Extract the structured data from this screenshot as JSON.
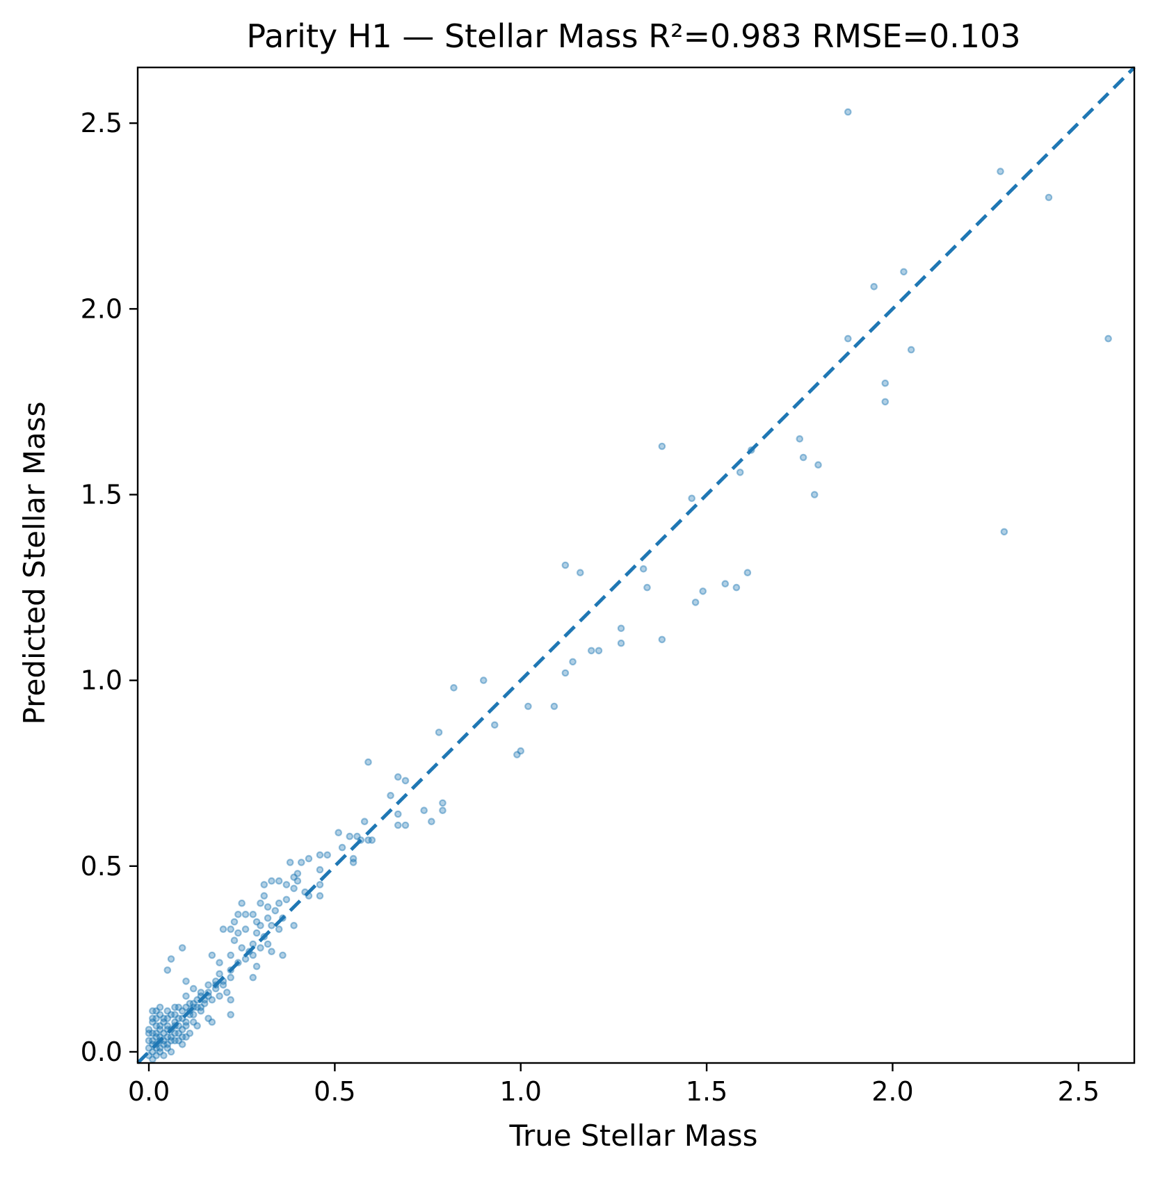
{
  "chart_data": {
    "type": "scatter",
    "title": "Parity H1 — Stellar Mass   R²=0.983   RMSE=0.103",
    "xlabel": "True Stellar Mass",
    "ylabel": "Predicted Stellar Mass",
    "xlim": [
      -0.03,
      2.65
    ],
    "ylim": [
      -0.03,
      2.65
    ],
    "xticks": [
      0.0,
      0.5,
      1.0,
      1.5,
      2.0,
      2.5
    ],
    "yticks": [
      0.0,
      0.5,
      1.0,
      1.5,
      2.0,
      2.5
    ],
    "xtick_labels": [
      "0.0",
      "0.5",
      "1.0",
      "1.5",
      "2.0",
      "2.5"
    ],
    "ytick_labels": [
      "0.0",
      "0.5",
      "1.0",
      "1.5",
      "2.0",
      "2.5"
    ],
    "grid": false,
    "colors": {
      "points": "#1f77b4",
      "identity_line": "#1f77b4"
    },
    "identity_line": {
      "style": "dashed",
      "from": [
        -0.03,
        -0.03
      ],
      "to": [
        2.65,
        2.65
      ]
    },
    "series": [
      {
        "points": [
          [
            1.88,
            2.53
          ],
          [
            2.29,
            2.37
          ],
          [
            2.42,
            2.3
          ],
          [
            2.03,
            2.1
          ],
          [
            1.95,
            2.06
          ],
          [
            1.88,
            1.92
          ],
          [
            2.58,
            1.92
          ],
          [
            2.05,
            1.89
          ],
          [
            1.98,
            1.8
          ],
          [
            1.98,
            1.75
          ],
          [
            2.3,
            1.4
          ],
          [
            1.38,
            1.63
          ],
          [
            1.75,
            1.65
          ],
          [
            1.76,
            1.6
          ],
          [
            1.8,
            1.58
          ],
          [
            1.62,
            1.62
          ],
          [
            1.59,
            1.56
          ],
          [
            1.79,
            1.5
          ],
          [
            1.46,
            1.49
          ],
          [
            1.12,
            1.31
          ],
          [
            1.16,
            1.29
          ],
          [
            1.33,
            1.3
          ],
          [
            1.61,
            1.29
          ],
          [
            1.34,
            1.25
          ],
          [
            1.55,
            1.26
          ],
          [
            1.58,
            1.25
          ],
          [
            1.49,
            1.24
          ],
          [
            1.47,
            1.21
          ],
          [
            1.27,
            1.14
          ],
          [
            1.38,
            1.11
          ],
          [
            1.27,
            1.1
          ],
          [
            1.19,
            1.08
          ],
          [
            1.21,
            1.08
          ],
          [
            1.14,
            1.05
          ],
          [
            1.12,
            1.02
          ],
          [
            0.9,
            1.0
          ],
          [
            0.82,
            0.98
          ],
          [
            1.02,
            0.93
          ],
          [
            1.09,
            0.93
          ],
          [
            0.93,
            0.88
          ],
          [
            0.78,
            0.86
          ],
          [
            1.0,
            0.81
          ],
          [
            0.99,
            0.8
          ],
          [
            0.59,
            0.78
          ],
          [
            0.67,
            0.74
          ],
          [
            0.69,
            0.73
          ],
          [
            0.65,
            0.69
          ],
          [
            0.79,
            0.67
          ],
          [
            0.74,
            0.65
          ],
          [
            0.79,
            0.65
          ],
          [
            0.67,
            0.64
          ],
          [
            0.58,
            0.62
          ],
          [
            0.67,
            0.61
          ],
          [
            0.69,
            0.61
          ],
          [
            0.76,
            0.62
          ],
          [
            0.51,
            0.59
          ],
          [
            0.56,
            0.58
          ],
          [
            0.57,
            0.57
          ],
          [
            0.59,
            0.57
          ],
          [
            0.54,
            0.58
          ],
          [
            0.6,
            0.57
          ],
          [
            0.52,
            0.55
          ],
          [
            0.55,
            0.52
          ],
          [
            0.46,
            0.53
          ],
          [
            0.48,
            0.53
          ],
          [
            0.55,
            0.51
          ],
          [
            0.38,
            0.51
          ],
          [
            0.41,
            0.51
          ],
          [
            0.43,
            0.52
          ],
          [
            0.4,
            0.48
          ],
          [
            0.46,
            0.49
          ],
          [
            0.39,
            0.47
          ],
          [
            0.33,
            0.46
          ],
          [
            0.35,
            0.46
          ],
          [
            0.4,
            0.46
          ],
          [
            0.31,
            0.45
          ],
          [
            0.37,
            0.45
          ],
          [
            0.46,
            0.45
          ],
          [
            0.39,
            0.44
          ],
          [
            0.42,
            0.43
          ],
          [
            0.31,
            0.42
          ],
          [
            0.43,
            0.42
          ],
          [
            0.46,
            0.42
          ],
          [
            0.25,
            0.4
          ],
          [
            0.3,
            0.4
          ],
          [
            0.35,
            0.4
          ],
          [
            0.37,
            0.41
          ],
          [
            0.32,
            0.39
          ],
          [
            0.34,
            0.38
          ],
          [
            0.24,
            0.37
          ],
          [
            0.26,
            0.37
          ],
          [
            0.28,
            0.37
          ],
          [
            0.36,
            0.36
          ],
          [
            0.32,
            0.36
          ],
          [
            0.29,
            0.35
          ],
          [
            0.23,
            0.35
          ],
          [
            0.3,
            0.34
          ],
          [
            0.33,
            0.34
          ],
          [
            0.39,
            0.34
          ],
          [
            0.2,
            0.33
          ],
          [
            0.22,
            0.33
          ],
          [
            0.26,
            0.33
          ],
          [
            0.35,
            0.33
          ],
          [
            0.24,
            0.32
          ],
          [
            0.29,
            0.32
          ],
          [
            0.31,
            0.31
          ],
          [
            0.23,
            0.3
          ],
          [
            0.28,
            0.29
          ],
          [
            0.32,
            0.29
          ],
          [
            0.25,
            0.28
          ],
          [
            0.3,
            0.28
          ],
          [
            0.09,
            0.28
          ],
          [
            0.27,
            0.27
          ],
          [
            0.33,
            0.27
          ],
          [
            0.22,
            0.26
          ],
          [
            0.28,
            0.26
          ],
          [
            0.36,
            0.26
          ],
          [
            0.17,
            0.26
          ],
          [
            0.26,
            0.25
          ],
          [
            0.06,
            0.25
          ],
          [
            0.19,
            0.24
          ],
          [
            0.24,
            0.24
          ],
          [
            0.29,
            0.23
          ],
          [
            0.22,
            0.22
          ],
          [
            0.05,
            0.22
          ],
          [
            0.19,
            0.21
          ],
          [
            0.22,
            0.2
          ],
          [
            0.28,
            0.2
          ],
          [
            0.18,
            0.19
          ],
          [
            0.1,
            0.19
          ],
          [
            0.16,
            0.18
          ],
          [
            0.2,
            0.18
          ],
          [
            0.12,
            0.17
          ],
          [
            0.18,
            0.17
          ],
          [
            0.14,
            0.16
          ],
          [
            0.21,
            0.16
          ],
          [
            0.16,
            0.15
          ],
          [
            0.1,
            0.15
          ],
          [
            0.19,
            0.15
          ],
          [
            0.13,
            0.14
          ],
          [
            0.17,
            0.14
          ],
          [
            0.22,
            0.14
          ],
          [
            0.11,
            0.13
          ],
          [
            0.15,
            0.13
          ],
          [
            0.03,
            0.12
          ],
          [
            0.07,
            0.12
          ],
          [
            0.12,
            0.12
          ],
          [
            0.01,
            0.11
          ],
          [
            0.05,
            0.11
          ],
          [
            0.09,
            0.11
          ],
          [
            0.14,
            0.11
          ],
          [
            0.22,
            0.1
          ],
          [
            0.03,
            0.1
          ],
          [
            0.07,
            0.1
          ],
          [
            0.11,
            0.1
          ],
          [
            0.16,
            0.09
          ],
          [
            0.02,
            0.09
          ],
          [
            0.05,
            0.09
          ],
          [
            0.08,
            0.09
          ],
          [
            0.12,
            0.08
          ],
          [
            0.01,
            0.08
          ],
          [
            0.04,
            0.08
          ],
          [
            0.07,
            0.08
          ],
          [
            0.1,
            0.08
          ],
          [
            0.17,
            0.08
          ],
          [
            0.02,
            0.07
          ],
          [
            0.05,
            0.07
          ],
          [
            0.08,
            0.07
          ],
          [
            0.13,
            0.07
          ],
          [
            0.0,
            0.06
          ],
          [
            0.03,
            0.06
          ],
          [
            0.06,
            0.06
          ],
          [
            0.09,
            0.06
          ],
          [
            0.11,
            0.05
          ],
          [
            0.01,
            0.05
          ],
          [
            0.04,
            0.05
          ],
          [
            0.07,
            0.05
          ],
          [
            0.1,
            0.04
          ],
          [
            0.02,
            0.04
          ],
          [
            0.05,
            0.04
          ],
          [
            0.08,
            0.03
          ],
          [
            0.0,
            0.03
          ],
          [
            0.03,
            0.03
          ],
          [
            0.06,
            0.03
          ],
          [
            0.09,
            0.02
          ],
          [
            0.01,
            0.02
          ],
          [
            0.04,
            0.02
          ],
          [
            0.02,
            0.01
          ],
          [
            0.05,
            0.01
          ],
          [
            0.0,
            0.01
          ],
          [
            0.03,
            0.0
          ],
          [
            0.01,
            0.0
          ],
          [
            0.06,
            0.0
          ],
          [
            0.02,
            -0.01
          ],
          [
            0.04,
            -0.01
          ],
          [
            0.0,
            -0.01
          ],
          [
            0.01,
            -0.02
          ],
          [
            0.03,
            0.07
          ],
          [
            0.02,
            0.05
          ],
          [
            0.04,
            0.09
          ],
          [
            0.06,
            0.1
          ],
          [
            0.08,
            0.12
          ],
          [
            0.1,
            0.12
          ],
          [
            0.12,
            0.13
          ],
          [
            0.14,
            0.15
          ],
          [
            0.16,
            0.16
          ],
          [
            0.18,
            0.18
          ],
          [
            0.2,
            0.19
          ],
          [
            0.02,
            0.11
          ],
          [
            0.01,
            0.09
          ],
          [
            0.0,
            0.05
          ],
          [
            0.03,
            0.04
          ],
          [
            0.05,
            0.06
          ],
          [
            0.07,
            0.07
          ],
          [
            0.09,
            0.09
          ],
          [
            0.11,
            0.11
          ],
          [
            0.13,
            0.12
          ],
          [
            0.15,
            0.14
          ],
          [
            0.04,
            0.03
          ],
          [
            0.06,
            0.04
          ],
          [
            0.08,
            0.05
          ],
          [
            0.1,
            0.07
          ],
          [
            0.12,
            0.1
          ],
          [
            0.14,
            0.12
          ],
          [
            0.01,
            0.03
          ],
          [
            0.02,
            0.02
          ],
          [
            0.03,
            0.01
          ],
          [
            0.05,
            0.02
          ],
          [
            0.07,
            0.03
          ],
          [
            0.09,
            0.04
          ]
        ]
      }
    ]
  }
}
